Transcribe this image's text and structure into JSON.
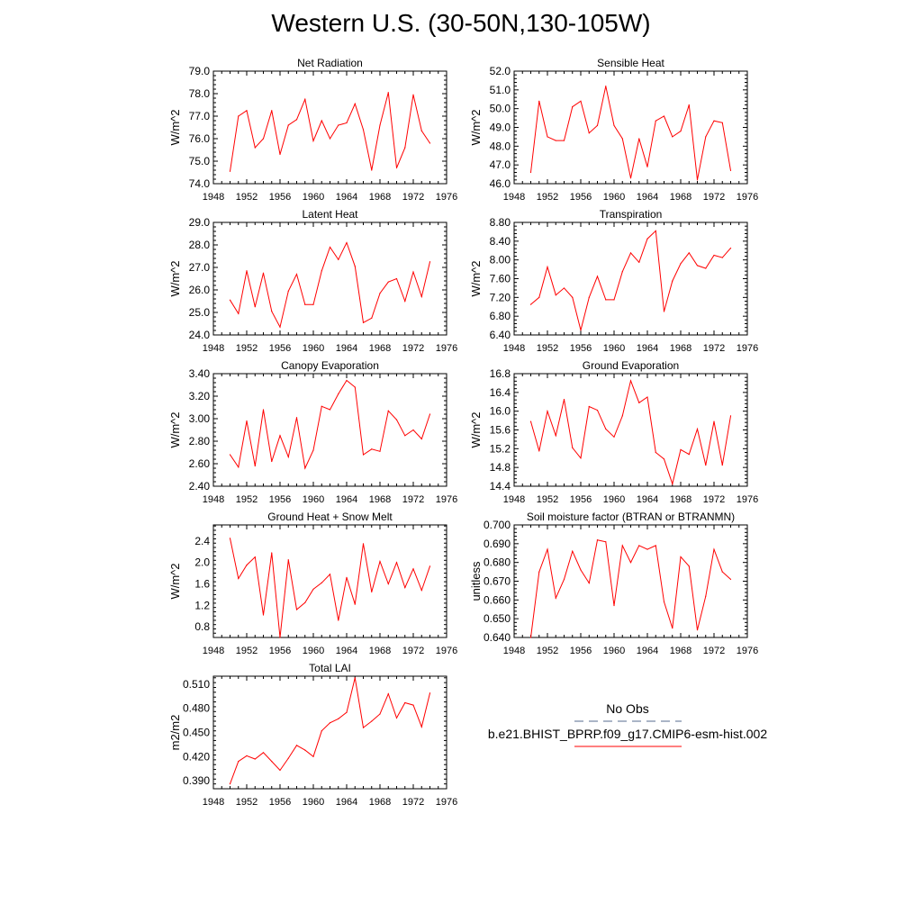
{
  "title": "Western U.S. (30-50N,130-105W)",
  "colors": {
    "series": "#ff0000",
    "obs": "#556b8f",
    "axis": "#000000"
  },
  "legend": {
    "obs_label": "No Obs",
    "model_label": "b.e21.BHIST_BPRP.f09_g17.CMIP6-esm-hist.002"
  },
  "chart_data": [
    {
      "type": "line",
      "title": "Net Radiation",
      "ylabel": "W/m^2",
      "xlim": [
        1948,
        1976
      ],
      "ylim": [
        74.0,
        79.0
      ],
      "x_ticks": [
        "1948",
        "1952",
        "1956",
        "1960",
        "1964",
        "1968",
        "1972",
        "1976"
      ],
      "y_ticks": [
        "74.0",
        "75.0",
        "76.0",
        "77.0",
        "78.0",
        "79.0"
      ],
      "series": [
        {
          "x": [
            1950,
            1951,
            1952,
            1953,
            1954,
            1955,
            1956,
            1957,
            1958,
            1959,
            1960,
            1961,
            1962,
            1963,
            1964,
            1965,
            1966,
            1967,
            1968,
            1969,
            1970,
            1971,
            1972,
            1973,
            1974
          ],
          "values": [
            74.55,
            77.0,
            77.25,
            75.6,
            76.0,
            77.25,
            75.3,
            76.6,
            76.85,
            77.75,
            75.9,
            76.8,
            76.0,
            76.6,
            76.7,
            77.55,
            76.4,
            74.6,
            76.6,
            78.05,
            74.7,
            75.6,
            77.95,
            76.35,
            75.8
          ]
        }
      ]
    },
    {
      "type": "line",
      "title": "Sensible Heat",
      "ylabel": "W/m^2",
      "xlim": [
        1948,
        1976
      ],
      "ylim": [
        46.0,
        52.0
      ],
      "x_ticks": [
        "1948",
        "1952",
        "1956",
        "1960",
        "1964",
        "1968",
        "1972",
        "1976"
      ],
      "y_ticks": [
        "46.0",
        "47.0",
        "48.0",
        "49.0",
        "50.0",
        "51.0",
        "52.0"
      ],
      "series": [
        {
          "x": [
            1950,
            1951,
            1952,
            1953,
            1954,
            1955,
            1956,
            1957,
            1958,
            1959,
            1960,
            1961,
            1962,
            1963,
            1964,
            1965,
            1966,
            1967,
            1968,
            1969,
            1970,
            1971,
            1972,
            1973,
            1974
          ],
          "values": [
            46.6,
            50.4,
            48.5,
            48.3,
            48.3,
            50.1,
            50.4,
            48.7,
            49.1,
            51.2,
            49.1,
            48.4,
            46.3,
            48.4,
            46.9,
            49.35,
            49.6,
            48.5,
            48.8,
            50.2,
            46.2,
            48.5,
            49.35,
            49.25,
            46.7
          ]
        }
      ]
    },
    {
      "type": "line",
      "title": "Latent Heat",
      "ylabel": "W/m^2",
      "xlim": [
        1948,
        1976
      ],
      "ylim": [
        24.0,
        29.0
      ],
      "x_ticks": [
        "1948",
        "1952",
        "1956",
        "1960",
        "1964",
        "1968",
        "1972",
        "1976"
      ],
      "y_ticks": [
        "24.0",
        "25.0",
        "26.0",
        "27.0",
        "28.0",
        "29.0"
      ],
      "series": [
        {
          "x": [
            1950,
            1951,
            1952,
            1953,
            1954,
            1955,
            1956,
            1957,
            1958,
            1959,
            1960,
            1961,
            1962,
            1963,
            1964,
            1965,
            1966,
            1967,
            1968,
            1969,
            1970,
            1971,
            1972,
            1973,
            1974
          ],
          "values": [
            25.55,
            24.95,
            26.85,
            25.25,
            26.75,
            25.05,
            24.35,
            25.95,
            26.7,
            25.35,
            25.35,
            26.85,
            27.9,
            27.35,
            28.1,
            27.05,
            24.55,
            24.75,
            25.85,
            26.35,
            26.5,
            25.5,
            26.8,
            25.7,
            27.25
          ]
        }
      ]
    },
    {
      "type": "line",
      "title": "Transpiration",
      "ylabel": "W/m^2",
      "xlim": [
        1948,
        1976
      ],
      "ylim": [
        6.4,
        8.8
      ],
      "x_ticks": [
        "1948",
        "1952",
        "1956",
        "1960",
        "1964",
        "1968",
        "1972",
        "1976"
      ],
      "y_ticks": [
        "6.40",
        "6.80",
        "7.20",
        "7.60",
        "8.00",
        "8.40",
        "8.80"
      ],
      "series": [
        {
          "x": [
            1950,
            1951,
            1952,
            1953,
            1954,
            1955,
            1956,
            1957,
            1958,
            1959,
            1960,
            1961,
            1962,
            1963,
            1964,
            1965,
            1966,
            1967,
            1968,
            1969,
            1970,
            1971,
            1972,
            1973,
            1974
          ],
          "values": [
            7.05,
            7.2,
            7.85,
            7.25,
            7.4,
            7.2,
            6.5,
            7.2,
            7.65,
            7.15,
            7.15,
            7.75,
            8.15,
            7.95,
            8.45,
            8.62,
            6.9,
            7.55,
            7.92,
            8.15,
            7.88,
            7.82,
            8.1,
            8.05,
            8.25
          ]
        }
      ]
    },
    {
      "type": "line",
      "title": "Canopy Evaporation",
      "ylabel": "W/m^2",
      "xlim": [
        1948,
        1976
      ],
      "ylim": [
        2.4,
        3.4
      ],
      "x_ticks": [
        "1948",
        "1952",
        "1956",
        "1960",
        "1964",
        "1968",
        "1972",
        "1976"
      ],
      "y_ticks": [
        "2.40",
        "2.60",
        "2.80",
        "3.00",
        "3.20",
        "3.40"
      ],
      "series": [
        {
          "x": [
            1950,
            1951,
            1952,
            1953,
            1954,
            1955,
            1956,
            1957,
            1958,
            1959,
            1960,
            1961,
            1962,
            1963,
            1964,
            1965,
            1966,
            1967,
            1968,
            1969,
            1970,
            1971,
            1972,
            1973,
            1974
          ],
          "values": [
            2.68,
            2.57,
            2.98,
            2.58,
            3.08,
            2.62,
            2.85,
            2.66,
            3.01,
            2.56,
            2.72,
            3.11,
            3.08,
            3.22,
            3.34,
            3.28,
            2.68,
            2.73,
            2.71,
            3.07,
            2.99,
            2.85,
            2.9,
            2.82,
            3.04
          ]
        }
      ]
    },
    {
      "type": "line",
      "title": "Ground Evaporation",
      "ylabel": "W/m^2",
      "xlim": [
        1948,
        1976
      ],
      "ylim": [
        14.4,
        16.8
      ],
      "x_ticks": [
        "1948",
        "1952",
        "1956",
        "1960",
        "1964",
        "1968",
        "1972",
        "1976"
      ],
      "y_ticks": [
        "14.4",
        "14.8",
        "15.2",
        "15.6",
        "16.0",
        "16.4",
        "16.8"
      ],
      "series": [
        {
          "x": [
            1950,
            1951,
            1952,
            1953,
            1954,
            1955,
            1956,
            1957,
            1958,
            1959,
            1960,
            1961,
            1962,
            1963,
            1964,
            1965,
            1966,
            1967,
            1968,
            1969,
            1970,
            1971,
            1972,
            1973,
            1974
          ],
          "values": [
            15.78,
            15.15,
            16.0,
            15.48,
            16.25,
            15.22,
            15.0,
            16.1,
            16.02,
            15.62,
            15.45,
            15.9,
            16.65,
            16.18,
            16.3,
            15.12,
            14.98,
            14.45,
            15.18,
            15.08,
            15.62,
            14.85,
            15.78,
            14.85,
            15.9
          ]
        }
      ]
    },
    {
      "type": "line",
      "title": "Ground Heat + Snow Melt",
      "ylabel": "W/m^2",
      "xlim": [
        1948,
        1976
      ],
      "ylim": [
        0.6,
        2.7
      ],
      "x_ticks": [
        "1948",
        "1952",
        "1956",
        "1960",
        "1964",
        "1968",
        "1972",
        "1976"
      ],
      "y_ticks": [
        "0.8",
        "1.2",
        "1.6",
        "2.0",
        "2.4"
      ],
      "y_tick_values": [
        0.8,
        1.2,
        1.6,
        2.0,
        2.4
      ],
      "series": [
        {
          "x": [
            1950,
            1951,
            1952,
            1953,
            1954,
            1955,
            1956,
            1957,
            1958,
            1959,
            1960,
            1961,
            1962,
            1963,
            1964,
            1965,
            1966,
            1967,
            1968,
            1969,
            1970,
            1971,
            1972,
            1973,
            1974
          ],
          "values": [
            2.45,
            1.7,
            1.95,
            2.1,
            1.02,
            2.18,
            0.6,
            2.05,
            1.12,
            1.25,
            1.5,
            1.62,
            1.78,
            0.92,
            1.72,
            1.22,
            2.35,
            1.45,
            2.02,
            1.6,
            2.0,
            1.53,
            1.88,
            1.48,
            1.93
          ]
        }
      ]
    },
    {
      "type": "line",
      "title": "Soil moisture factor (BTRAN or BTRANMN)",
      "ylabel": "unitless",
      "xlim": [
        1948,
        1976
      ],
      "ylim": [
        0.64,
        0.7
      ],
      "x_ticks": [
        "1948",
        "1952",
        "1956",
        "1960",
        "1964",
        "1968",
        "1972",
        "1976"
      ],
      "y_ticks": [
        "0.640",
        "0.650",
        "0.660",
        "0.670",
        "0.680",
        "0.690",
        "0.700"
      ],
      "series": [
        {
          "x": [
            1950,
            1951,
            1952,
            1953,
            1954,
            1955,
            1956,
            1957,
            1958,
            1959,
            1960,
            1961,
            1962,
            1963,
            1964,
            1965,
            1966,
            1967,
            1968,
            1969,
            1970,
            1971,
            1972,
            1973,
            1974
          ],
          "values": [
            0.64,
            0.675,
            0.687,
            0.661,
            0.671,
            0.686,
            0.676,
            0.669,
            0.692,
            0.691,
            0.657,
            0.689,
            0.68,
            0.689,
            0.687,
            0.689,
            0.659,
            0.645,
            0.683,
            0.678,
            0.644,
            0.662,
            0.687,
            0.675,
            0.671
          ]
        }
      ]
    },
    {
      "type": "line",
      "title": "Total LAI",
      "ylabel": "m2/m2",
      "xlim": [
        1948,
        1976
      ],
      "ylim": [
        0.38,
        0.52
      ],
      "x_ticks": [
        "1948",
        "1952",
        "1956",
        "1960",
        "1964",
        "1968",
        "1972",
        "1976"
      ],
      "y_ticks": [
        "0.390",
        "0.420",
        "0.450",
        "0.480",
        "0.510"
      ],
      "y_tick_values": [
        0.39,
        0.42,
        0.45,
        0.48,
        0.51
      ],
      "series": [
        {
          "x": [
            1950,
            1951,
            1952,
            1953,
            1954,
            1955,
            1956,
            1957,
            1958,
            1959,
            1960,
            1961,
            1962,
            1963,
            1964,
            1965,
            1966,
            1967,
            1968,
            1969,
            1970,
            1971,
            1972,
            1973,
            1974
          ],
          "values": [
            0.386,
            0.414,
            0.421,
            0.417,
            0.425,
            0.414,
            0.403,
            0.418,
            0.434,
            0.428,
            0.42,
            0.452,
            0.462,
            0.467,
            0.475,
            0.518,
            0.456,
            0.464,
            0.473,
            0.498,
            0.468,
            0.487,
            0.484,
            0.457,
            0.499
          ]
        }
      ]
    }
  ]
}
